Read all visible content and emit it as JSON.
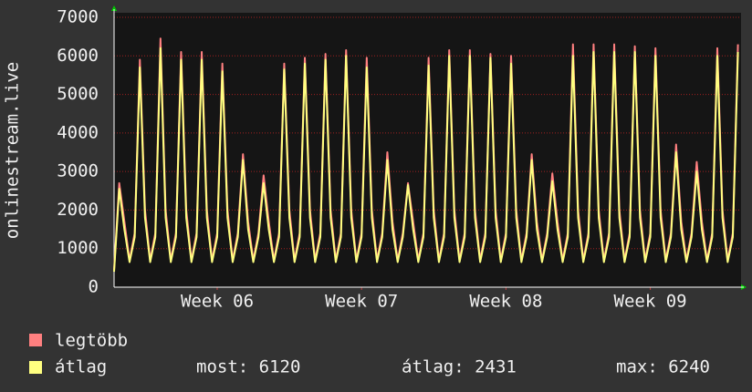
{
  "chart_data": {
    "type": "line",
    "ylabel": "onlinestream.live",
    "xlim": [
      0,
      30.4
    ],
    "xticks": [
      {
        "value": 5,
        "label": "Week 06"
      },
      {
        "value": 12,
        "label": "Week 07"
      },
      {
        "value": 19,
        "label": "Week 08"
      },
      {
        "value": 26,
        "label": "Week 09"
      }
    ],
    "ylim": [
      0,
      7000
    ],
    "yticks": [
      0,
      1000,
      2000,
      3000,
      4000,
      5000,
      6000,
      7000
    ],
    "grid": true,
    "x": [
      0,
      0.25,
      0.5,
      0.75,
      1,
      1.25,
      1.5,
      1.75,
      2,
      2.25,
      2.5,
      2.75,
      3,
      3.25,
      3.5,
      3.75,
      4,
      4.25,
      4.5,
      4.75,
      5,
      5.25,
      5.5,
      5.75,
      6,
      6.25,
      6.5,
      6.75,
      7,
      7.25,
      7.5,
      7.75,
      8,
      8.25,
      8.5,
      8.75,
      9,
      9.25,
      9.5,
      9.75,
      10,
      10.25,
      10.5,
      10.75,
      11,
      11.25,
      11.5,
      11.75,
      12,
      12.25,
      12.5,
      12.75,
      13,
      13.25,
      13.5,
      13.75,
      14,
      14.25,
      14.5,
      14.75,
      15,
      15.25,
      15.5,
      15.75,
      16,
      16.25,
      16.5,
      16.75,
      17,
      17.25,
      17.5,
      17.75,
      18,
      18.25,
      18.5,
      18.75,
      19,
      19.25,
      19.5,
      19.75,
      20,
      20.25,
      20.5,
      20.75,
      21,
      21.25,
      21.5,
      21.75,
      22,
      22.25,
      22.5,
      22.75,
      23,
      23.25,
      23.5,
      23.75,
      24,
      24.25,
      24.5,
      24.75,
      25,
      25.25,
      25.5,
      25.75,
      26,
      26.25,
      26.5,
      26.75,
      27,
      27.25,
      27.5,
      27.75,
      28,
      28.25,
      28.5,
      28.75,
      29,
      29.25,
      29.5,
      29.75,
      30,
      30.25
    ],
    "series": [
      {
        "name": "legtöbb",
        "color": "#ff8080",
        "values": [
          450,
          2700,
          1700,
          700,
          1400,
          5900,
          2000,
          700,
          1400,
          6450,
          2000,
          700,
          1400,
          6100,
          2000,
          700,
          1400,
          6100,
          2000,
          700,
          1400,
          5800,
          2000,
          700,
          1400,
          3450,
          1700,
          700,
          1400,
          2900,
          1700,
          700,
          1400,
          5800,
          2000,
          700,
          1400,
          5950,
          2000,
          700,
          1400,
          6050,
          2000,
          700,
          1400,
          6150,
          2000,
          700,
          1400,
          5950,
          2000,
          700,
          1400,
          3500,
          1700,
          700,
          1400,
          2700,
          1700,
          700,
          1400,
          5950,
          2000,
          700,
          1400,
          6150,
          2000,
          700,
          1400,
          6150,
          2000,
          700,
          1400,
          6050,
          2000,
          700,
          1400,
          6000,
          2000,
          700,
          1400,
          3450,
          1700,
          700,
          1400,
          2950,
          1700,
          700,
          1400,
          6300,
          2000,
          700,
          1400,
          6300,
          2000,
          700,
          1400,
          6300,
          2000,
          700,
          1400,
          6250,
          2000,
          700,
          1400,
          6200,
          2000,
          700,
          1400,
          3700,
          1700,
          700,
          1400,
          3250,
          1700,
          700,
          1400,
          6200,
          2000,
          700,
          1400,
          6300
        ]
      },
      {
        "name": "átlag",
        "color": "#ffff80",
        "values": [
          400,
          2550,
          1500,
          650,
          1300,
          5700,
          1800,
          650,
          1300,
          6200,
          1800,
          650,
          1300,
          5900,
          1800,
          650,
          1300,
          5900,
          1800,
          650,
          1300,
          5600,
          1800,
          650,
          1300,
          3300,
          1500,
          650,
          1300,
          2700,
          1500,
          650,
          1300,
          5650,
          1800,
          650,
          1300,
          5800,
          1800,
          650,
          1300,
          5900,
          1800,
          650,
          1300,
          6000,
          1800,
          650,
          1300,
          5700,
          1800,
          650,
          1300,
          3300,
          1500,
          650,
          1300,
          2650,
          1500,
          650,
          1300,
          5750,
          1800,
          650,
          1300,
          6000,
          1800,
          650,
          1300,
          6000,
          1800,
          650,
          1300,
          5950,
          1800,
          650,
          1300,
          5800,
          1800,
          650,
          1300,
          3300,
          1500,
          650,
          1300,
          2750,
          1500,
          650,
          1300,
          6000,
          1800,
          650,
          1300,
          6100,
          1800,
          650,
          1300,
          6100,
          1800,
          650,
          1300,
          6100,
          1800,
          650,
          1300,
          6000,
          1800,
          650,
          1300,
          3500,
          1500,
          650,
          1300,
          3000,
          1500,
          650,
          1300,
          6000,
          1800,
          650,
          1300,
          6100
        ]
      }
    ],
    "stats": [
      "most: 6120",
      "átlag: 2431",
      "max: 6240"
    ]
  }
}
